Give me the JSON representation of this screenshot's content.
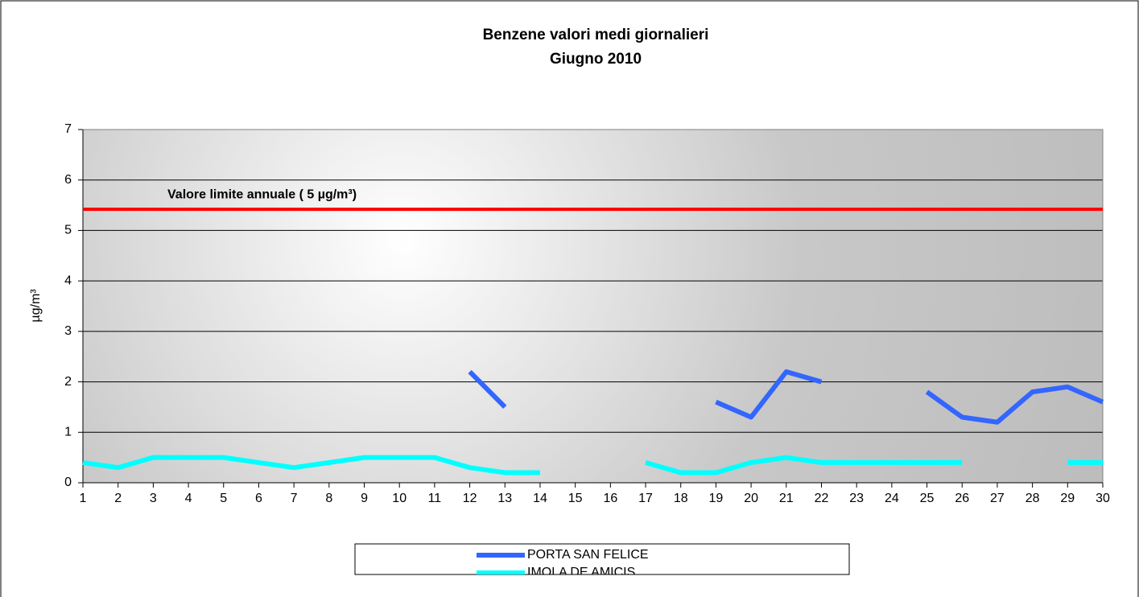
{
  "chart_data": {
    "type": "line",
    "title": "Benzene valori medi giornalieri",
    "subtitle": "Giugno 2010",
    "y_label": "µg/m³",
    "x": [
      1,
      2,
      3,
      4,
      5,
      6,
      7,
      8,
      9,
      10,
      11,
      12,
      13,
      14,
      15,
      16,
      17,
      18,
      19,
      20,
      21,
      22,
      23,
      24,
      25,
      26,
      27,
      28,
      29,
      30
    ],
    "xlim": [
      1,
      30
    ],
    "xticks": [
      1,
      2,
      3,
      4,
      5,
      6,
      7,
      8,
      9,
      10,
      11,
      12,
      13,
      14,
      15,
      16,
      17,
      18,
      19,
      20,
      21,
      22,
      23,
      24,
      25,
      26,
      27,
      28,
      29,
      30
    ],
    "ylim": [
      0,
      7
    ],
    "yticks": [
      0,
      1,
      2,
      3,
      4,
      5,
      6,
      7
    ],
    "grid": true,
    "series": [
      {
        "name": "PORTA SAN FELICE",
        "color": "#3366ff",
        "values": [
          null,
          null,
          null,
          null,
          null,
          null,
          null,
          null,
          null,
          null,
          null,
          2.2,
          1.5,
          null,
          null,
          null,
          null,
          null,
          1.6,
          1.3,
          2.2,
          2.0,
          null,
          null,
          1.8,
          1.3,
          1.2,
          1.8,
          1.9,
          1.6
        ]
      },
      {
        "name": "IMOLA DE AMICIS",
        "color": "#00ffff",
        "values": [
          0.4,
          0.3,
          0.5,
          0.5,
          0.5,
          0.4,
          0.3,
          0.4,
          0.5,
          0.5,
          0.5,
          0.3,
          0.2,
          0.2,
          null,
          null,
          0.4,
          0.2,
          0.2,
          0.4,
          0.5,
          0.4,
          0.4,
          0.4,
          0.4,
          0.4,
          null,
          null,
          0.4,
          0.4
        ]
      }
    ],
    "reference_line": {
      "value": 5.42,
      "color": "#ff0000",
      "label": "Valore limite annuale ( 5 µg/m³)"
    }
  }
}
